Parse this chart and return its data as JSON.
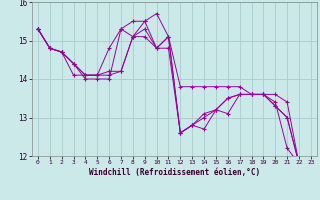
{
  "xlabel": "Windchill (Refroidissement éolien,°C)",
  "hours": [
    0,
    1,
    2,
    3,
    4,
    5,
    6,
    7,
    8,
    9,
    10,
    11,
    12,
    13,
    14,
    15,
    16,
    17,
    18,
    19,
    20,
    21,
    22,
    23
  ],
  "series": [
    [
      15.3,
      14.8,
      14.7,
      14.4,
      14.0,
      14.0,
      14.0,
      15.3,
      15.1,
      15.1,
      14.8,
      15.1,
      13.8,
      13.8,
      13.8,
      13.8,
      13.8,
      13.8,
      13.6,
      13.6,
      13.6,
      13.4,
      11.8,
      11.7
    ],
    [
      15.3,
      14.8,
      14.7,
      14.1,
      14.1,
      14.1,
      14.8,
      15.3,
      15.5,
      15.5,
      14.8,
      15.1,
      12.6,
      12.8,
      12.7,
      13.2,
      13.1,
      13.6,
      13.6,
      13.6,
      13.4,
      12.2,
      11.8,
      11.7
    ],
    [
      15.3,
      14.8,
      14.7,
      14.4,
      14.1,
      14.1,
      14.2,
      14.2,
      15.1,
      15.3,
      14.8,
      14.8,
      12.6,
      12.8,
      13.1,
      13.2,
      13.5,
      13.6,
      13.6,
      13.6,
      13.3,
      13.0,
      11.8,
      11.7
    ],
    [
      15.3,
      14.8,
      14.7,
      14.4,
      14.1,
      14.1,
      14.1,
      14.2,
      15.1,
      15.5,
      15.7,
      15.1,
      12.6,
      12.8,
      13.0,
      13.2,
      13.5,
      13.6,
      13.6,
      13.6,
      13.3,
      13.0,
      11.8,
      11.7
    ]
  ],
  "line_color": "#990099",
  "bg_color": "#cce9e9",
  "grid_color": "#aacccc",
  "ylim": [
    12,
    16
  ],
  "xlim": [
    -0.5,
    23.5
  ],
  "xtick_labels": [
    "0",
    "1",
    "2",
    "3",
    "4",
    "5",
    "6",
    "7",
    "8",
    "9",
    "10",
    "11",
    "12",
    "13",
    "14",
    "15",
    "16",
    "17",
    "18",
    "19",
    "20",
    "21",
    "22",
    "23"
  ]
}
